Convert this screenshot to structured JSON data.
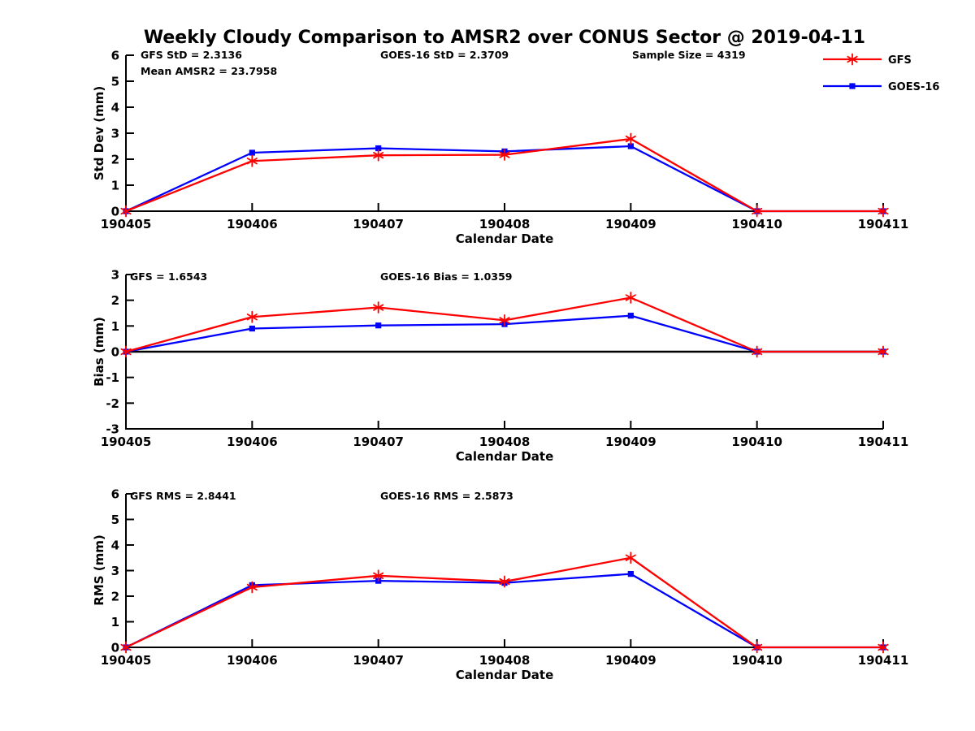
{
  "title": "Weekly Cloudy Comparison to AMSR2 over CONUS Sector @ 2019-04-11",
  "colors": {
    "gfs": "#ff0000",
    "goes16": "#0000ff",
    "axis": "#000000",
    "background": "#ffffff"
  },
  "legend": {
    "items": [
      {
        "label": "GFS",
        "color": "#ff0000",
        "marker": "asterisk"
      },
      {
        "label": "GOES-16",
        "color": "#0000ff",
        "marker": "square"
      }
    ]
  },
  "chart_data": [
    {
      "type": "line",
      "title": "",
      "ylabel": "Std Dev (mm)",
      "xlabel": "Calendar Date",
      "categories": [
        "190405",
        "190406",
        "190407",
        "190408",
        "190409",
        "190410",
        "190411"
      ],
      "ylim": [
        0,
        6
      ],
      "yticks": [
        0,
        1,
        2,
        3,
        4,
        5,
        6
      ],
      "grid": false,
      "zero_line": false,
      "annotations": [
        {
          "text": "GFS StD = 2.3136"
        },
        {
          "text": "Mean AMSR2 = 23.7958"
        },
        {
          "text": "GOES-16 StD = 2.3709"
        },
        {
          "text": "Sample Size = 4319"
        }
      ],
      "series": [
        {
          "name": "GFS",
          "color": "#ff0000",
          "marker": "asterisk",
          "values": [
            0,
            1.93,
            2.15,
            2.17,
            2.78,
            0,
            0
          ]
        },
        {
          "name": "GOES-16",
          "color": "#0000ff",
          "marker": "square",
          "values": [
            0,
            2.25,
            2.42,
            2.3,
            2.5,
            0,
            0
          ]
        }
      ]
    },
    {
      "type": "line",
      "title": "",
      "ylabel": "Bias (mm)",
      "xlabel": "Calendar Date",
      "categories": [
        "190405",
        "190406",
        "190407",
        "190408",
        "190409",
        "190410",
        "190411"
      ],
      "ylim": [
        -3,
        3
      ],
      "yticks": [
        -3,
        -2,
        -1,
        0,
        1,
        2,
        3
      ],
      "grid": false,
      "zero_line": true,
      "annotations": [
        {
          "text": "GFS = 1.6543"
        },
        {
          "text": "GOES-16 Bias  = 1.0359"
        }
      ],
      "series": [
        {
          "name": "GFS",
          "color": "#ff0000",
          "marker": "asterisk",
          "values": [
            0,
            1.35,
            1.72,
            1.22,
            2.1,
            0,
            0
          ]
        },
        {
          "name": "GOES-16",
          "color": "#0000ff",
          "marker": "square",
          "values": [
            0,
            0.9,
            1.02,
            1.07,
            1.4,
            0,
            0
          ]
        }
      ]
    },
    {
      "type": "line",
      "title": "",
      "ylabel": "RMS (mm)",
      "xlabel": "Calendar Date",
      "categories": [
        "190405",
        "190406",
        "190407",
        "190408",
        "190409",
        "190410",
        "190411"
      ],
      "ylim": [
        0,
        6
      ],
      "yticks": [
        0,
        1,
        2,
        3,
        4,
        5,
        6
      ],
      "grid": false,
      "zero_line": false,
      "annotations": [
        {
          "text": "GFS RMS = 2.8441"
        },
        {
          "text": "GOES-16 RMS = 2.5873"
        }
      ],
      "series": [
        {
          "name": "GFS",
          "color": "#ff0000",
          "marker": "asterisk",
          "values": [
            0,
            2.35,
            2.8,
            2.57,
            3.5,
            0,
            0
          ]
        },
        {
          "name": "GOES-16",
          "color": "#0000ff",
          "marker": "square",
          "values": [
            0,
            2.43,
            2.6,
            2.52,
            2.87,
            0,
            0
          ]
        }
      ]
    }
  ]
}
